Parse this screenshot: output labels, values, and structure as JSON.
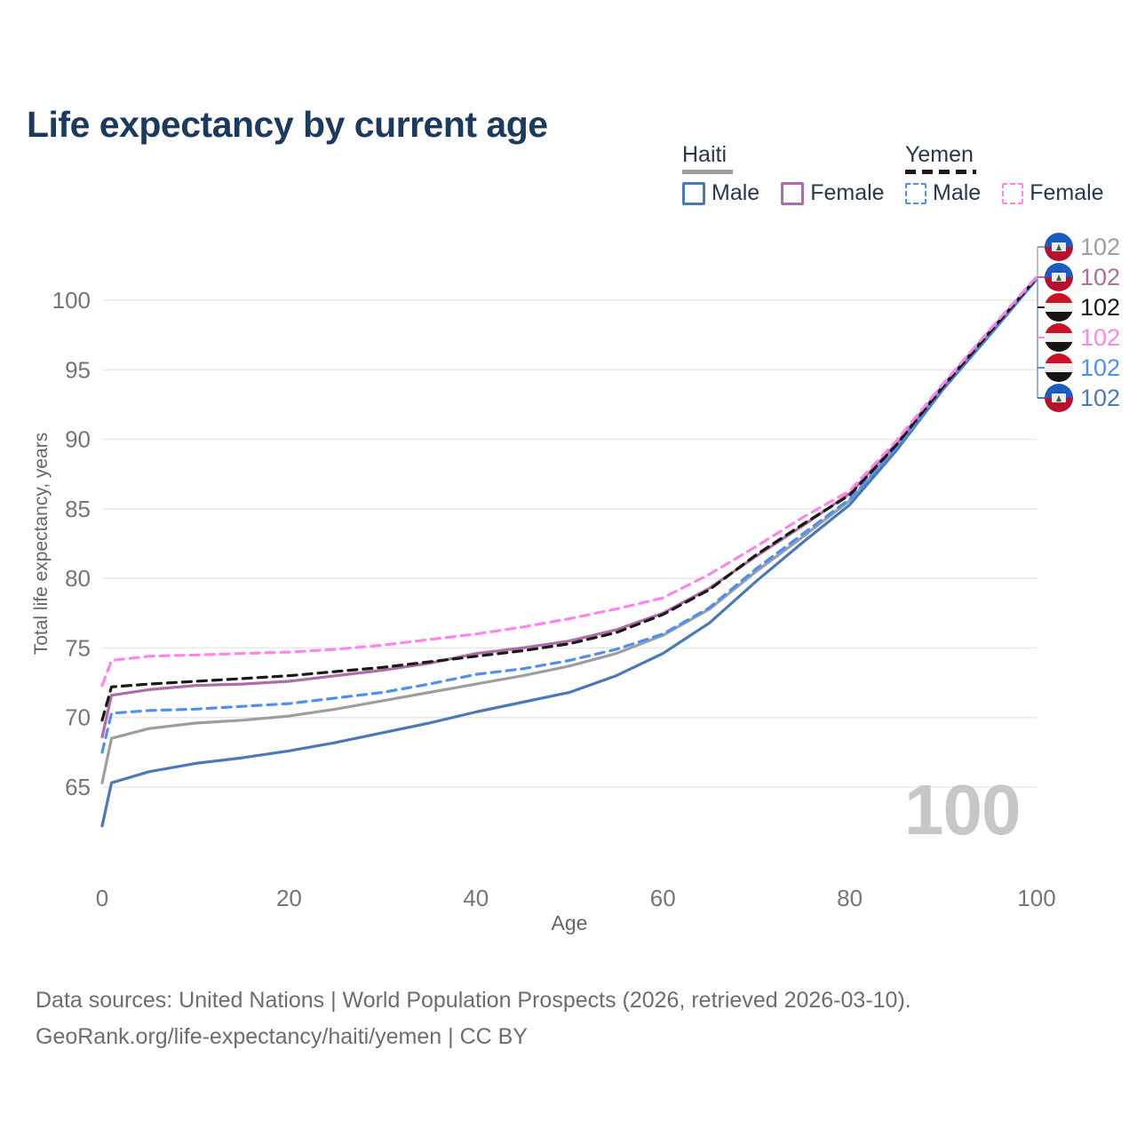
{
  "title": "Life expectancy by current age",
  "legend": {
    "groups": [
      {
        "label": "Haiti",
        "line_style": "solid",
        "line_color": "#9e9e9e",
        "items": [
          {
            "label": "Male",
            "color": "#4a7ab5"
          },
          {
            "label": "Female",
            "color": "#b06ca8"
          }
        ]
      },
      {
        "label": "Yemen",
        "line_style": "dashed",
        "line_color": "#1a1a1a",
        "items": [
          {
            "label": "Male",
            "color": "#4d8ff2"
          },
          {
            "label": "Female",
            "color": "#ff85ea"
          }
        ]
      }
    ]
  },
  "axes": {
    "x": {
      "label": "Age",
      "ticks": [
        0,
        20,
        40,
        60,
        80,
        100
      ],
      "range": [
        0,
        100
      ]
    },
    "y": {
      "label": "Total life expectancy, years",
      "ticks": [
        65,
        70,
        75,
        80,
        85,
        90,
        95,
        100
      ],
      "range": [
        65,
        100
      ]
    }
  },
  "chart_data": {
    "type": "line",
    "title": "Life expectancy by current age",
    "xlabel": "Age",
    "ylabel": "Total life expectancy, years",
    "xlim": [
      0,
      100
    ],
    "ylim": [
      65,
      100
    ],
    "grid": "horizontal",
    "legend_position": "top-right",
    "x": [
      0,
      1,
      5,
      10,
      15,
      20,
      25,
      30,
      35,
      40,
      45,
      50,
      55,
      60,
      65,
      70,
      75,
      80,
      85,
      90,
      95,
      100
    ],
    "series": [
      {
        "name": "Haiti",
        "country": "Haiti",
        "group": "both-sexes",
        "color": "#9e9e9e",
        "dash": "solid",
        "values": [
          65.3,
          68.5,
          69.2,
          69.6,
          69.8,
          70.1,
          70.6,
          71.2,
          71.8,
          72.4,
          73.0,
          73.7,
          74.6,
          75.9,
          77.8,
          80.5,
          83.0,
          85.6,
          89.4,
          93.7,
          97.6,
          101.6
        ]
      },
      {
        "name": "Haiti Male",
        "country": "Haiti",
        "group": "male",
        "color": "#4a7ab5",
        "dash": "solid",
        "values": [
          62.2,
          65.3,
          66.1,
          66.7,
          67.1,
          67.6,
          68.2,
          68.9,
          69.6,
          70.4,
          71.1,
          71.8,
          73.0,
          74.6,
          76.8,
          79.8,
          82.6,
          85.3,
          89.2,
          93.6,
          97.5,
          101.5
        ]
      },
      {
        "name": "Haiti Female",
        "country": "Haiti",
        "group": "female",
        "color": "#b06ca8",
        "dash": "solid",
        "values": [
          68.6,
          71.6,
          72.0,
          72.3,
          72.4,
          72.6,
          73.0,
          73.4,
          73.9,
          74.6,
          75.0,
          75.5,
          76.3,
          77.5,
          79.3,
          81.6,
          83.8,
          86.1,
          89.7,
          93.9,
          97.8,
          101.6
        ]
      },
      {
        "name": "Yemen Male",
        "country": "Yemen",
        "group": "male",
        "color": "#4d8ff2",
        "dash": "dashed",
        "values": [
          67.5,
          70.3,
          70.5,
          70.6,
          70.8,
          71.0,
          71.4,
          71.8,
          72.4,
          73.1,
          73.5,
          74.1,
          74.9,
          76.0,
          77.9,
          80.7,
          83.2,
          85.7,
          89.4,
          93.7,
          97.6,
          101.5
        ]
      },
      {
        "name": "Yemen",
        "country": "Yemen",
        "group": "both-sexes",
        "color": "#1a1a1a",
        "dash": "dashed",
        "values": [
          69.8,
          72.2,
          72.4,
          72.6,
          72.8,
          73.0,
          73.3,
          73.6,
          74.0,
          74.4,
          74.8,
          75.3,
          76.1,
          77.4,
          79.2,
          81.7,
          83.9,
          86.0,
          89.6,
          93.8,
          97.7,
          101.6
        ]
      },
      {
        "name": "Yemen Female",
        "country": "Yemen",
        "group": "female",
        "color": "#ff85ea",
        "dash": "dashed",
        "values": [
          72.3,
          74.1,
          74.4,
          74.5,
          74.6,
          74.7,
          74.9,
          75.2,
          75.6,
          76.0,
          76.5,
          77.1,
          77.8,
          78.6,
          80.3,
          82.3,
          84.4,
          86.3,
          89.9,
          94.0,
          97.9,
          101.7
        ]
      }
    ],
    "end_labels": [
      {
        "series": "Haiti",
        "flag": "haiti",
        "value": "102",
        "color": "#9e9e9e"
      },
      {
        "series": "Haiti Female",
        "flag": "haiti",
        "value": "102",
        "color": "#b06ca8"
      },
      {
        "series": "Yemen",
        "flag": "yemen",
        "value": "102",
        "color": "#1a1a1a"
      },
      {
        "series": "Yemen Female",
        "flag": "yemen",
        "value": "102",
        "color": "#ff85ea"
      },
      {
        "series": "Yemen Male",
        "flag": "yemen",
        "value": "102",
        "color": "#4d8ff2"
      },
      {
        "series": "Haiti Male",
        "flag": "haiti",
        "value": "102",
        "color": "#4a7ab5"
      }
    ]
  },
  "watermark": "100",
  "footer": {
    "line1": "Data sources: United Nations | World Population Prospects (2026, retrieved 2026-03-10).",
    "line2": "GeoRank.org/life-expectancy/haiti/yemen | CC BY"
  },
  "colors": {
    "title": "#1c3a5e",
    "legend_text": "#29374e",
    "axis_text": "#757575",
    "grid": "#e8e8e8",
    "watermark": "#c7c7c7",
    "footer_text": "#6d6d6d"
  }
}
